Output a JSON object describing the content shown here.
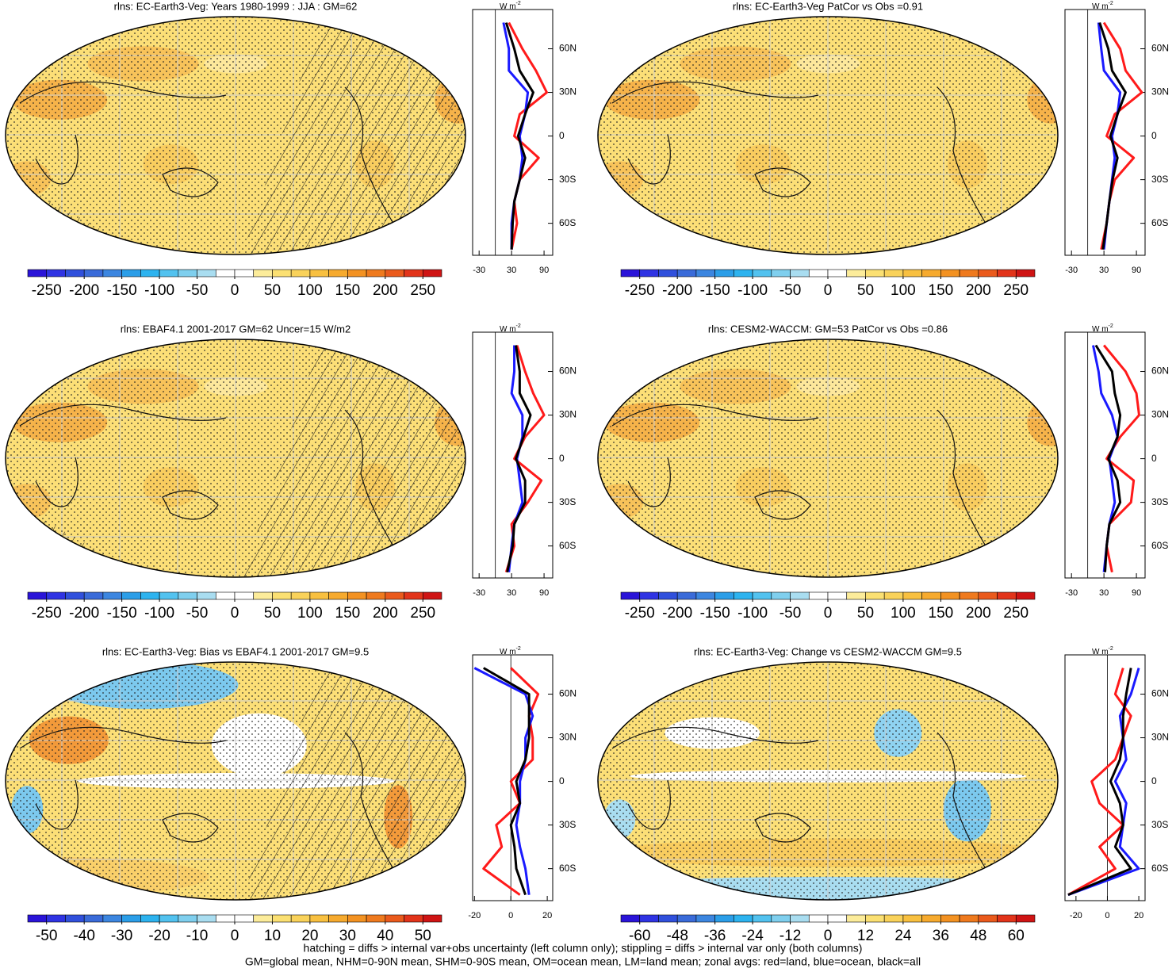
{
  "chart_data": [
    {
      "type": "map-zonal",
      "title": "rlns: EC-Earth3-Veg: Years 1980-1999 : JJA : GM=62",
      "unit": "W m",
      "unit_exp": "-2",
      "colorbar_lim": [
        -275,
        275
      ],
      "colorbar_ticks": [
        -250,
        -200,
        -150,
        -100,
        -50,
        0,
        50,
        100,
        150,
        200,
        250
      ],
      "lat": [
        -78,
        -60,
        -45,
        -30,
        -15,
        0,
        15,
        30,
        45,
        60,
        78
      ],
      "ylim": [
        -82,
        87
      ],
      "yticks": [
        {
          "value": 60,
          "label": "60N"
        },
        {
          "value": 30,
          "label": "30N"
        },
        0,
        {
          "value": -30,
          "label": "30S"
        },
        {
          "value": -60,
          "label": "60S"
        }
      ],
      "xlim": [
        -42,
        106
      ],
      "xticks": [
        -30,
        30,
        90
      ],
      "series": [
        {
          "color": "#ff1a1a",
          "values": [
            30,
            40,
            35,
            45,
            80,
            35,
            45,
            95,
            75,
            50,
            25
          ]
        },
        {
          "color": "#1a1aff",
          "values": [
            30,
            30,
            35,
            45,
            50,
            45,
            55,
            60,
            25,
            25,
            15
          ]
        },
        {
          "color": "#000000",
          "values": [
            30,
            32,
            35,
            45,
            55,
            42,
            55,
            70,
            45,
            35,
            20
          ]
        }
      ]
    },
    {
      "type": "map-zonal",
      "title": "rlns: EC-Earth3-Veg PatCor vs Obs =0.91",
      "unit": "W m",
      "unit_exp": "-2",
      "colorbar_lim": [
        -275,
        275
      ],
      "colorbar_ticks": [
        -250,
        -200,
        -150,
        -100,
        -50,
        0,
        50,
        100,
        150,
        200,
        250
      ],
      "lat": [
        -78,
        -60,
        -45,
        -30,
        -15,
        0,
        15,
        30,
        45,
        60,
        78
      ],
      "ylim": [
        -82,
        87
      ],
      "yticks": [
        {
          "value": 60,
          "label": "60N"
        },
        {
          "value": 30,
          "label": "30N"
        },
        0,
        {
          "value": -30,
          "label": "30S"
        },
        {
          "value": -60,
          "label": "60S"
        }
      ],
      "xlim": [
        -42,
        106
      ],
      "xticks": [
        -30,
        30,
        90
      ],
      "series": [
        {
          "color": "#ff1a1a",
          "values": [
            25,
            35,
            40,
            50,
            85,
            35,
            50,
            100,
            70,
            60,
            30
          ]
        },
        {
          "color": "#1a1aff",
          "values": [
            30,
            35,
            40,
            45,
            50,
            45,
            55,
            60,
            30,
            25,
            20
          ]
        },
        {
          "color": "#000000",
          "values": [
            28,
            35,
            40,
            46,
            55,
            42,
            55,
            70,
            45,
            38,
            22
          ]
        }
      ]
    },
    {
      "type": "map-zonal",
      "title": "rlns: EBAF4.1 2001-2017 GM=62 Uncer=15 W/m2",
      "unit": "W m",
      "unit_exp": "-2",
      "colorbar_lim": [
        -275,
        275
      ],
      "colorbar_ticks": [
        -250,
        -200,
        -150,
        -100,
        -50,
        0,
        50,
        100,
        150,
        200,
        250
      ],
      "lat": [
        -78,
        -60,
        -45,
        -30,
        -15,
        0,
        15,
        30,
        45,
        60,
        78
      ],
      "ylim": [
        -82,
        87
      ],
      "yticks": [
        {
          "value": 60,
          "label": "60N"
        },
        {
          "value": 30,
          "label": "30N"
        },
        0,
        {
          "value": -30,
          "label": "30S"
        },
        {
          "value": -60,
          "label": "60S"
        }
      ],
      "xlim": [
        -42,
        106
      ],
      "xticks": [
        -30,
        30,
        90
      ],
      "series": [
        {
          "color": "#ff1a1a",
          "values": [
            20,
            35,
            30,
            60,
            85,
            35,
            55,
            90,
            70,
            55,
            40
          ]
        },
        {
          "color": "#1a1aff",
          "values": [
            25,
            30,
            35,
            50,
            45,
            40,
            50,
            50,
            30,
            35,
            35
          ]
        },
        {
          "color": "#000000",
          "values": [
            22,
            32,
            35,
            55,
            55,
            38,
            52,
            65,
            45,
            45,
            38
          ]
        }
      ]
    },
    {
      "type": "map-zonal",
      "title": "rlns: CESM2-WACCM: GM=53 PatCor vs Obs =0.86",
      "unit": "W m",
      "unit_exp": "-2",
      "colorbar_lim": [
        -275,
        275
      ],
      "colorbar_ticks": [
        -250,
        -200,
        -150,
        -100,
        -50,
        0,
        50,
        100,
        150,
        200,
        250
      ],
      "lat": [
        -78,
        -60,
        -45,
        -30,
        -15,
        0,
        15,
        30,
        45,
        60,
        78
      ],
      "ylim": [
        -82,
        87
      ],
      "yticks": [
        {
          "value": 60,
          "label": "60N"
        },
        {
          "value": 30,
          "label": "30N"
        },
        0,
        {
          "value": -30,
          "label": "30S"
        },
        {
          "value": -60,
          "label": "60S"
        }
      ],
      "xlim": [
        -42,
        106
      ],
      "xticks": [
        -30,
        30,
        90
      ],
      "series": [
        {
          "color": "#ff1a1a",
          "values": [
            45,
            35,
            40,
            80,
            85,
            35,
            60,
            95,
            90,
            70,
            30
          ]
        },
        {
          "color": "#1a1aff",
          "values": [
            30,
            35,
            40,
            50,
            45,
            40,
            55,
            45,
            25,
            20,
            10
          ]
        },
        {
          "color": "#000000",
          "values": [
            32,
            35,
            40,
            60,
            55,
            38,
            55,
            60,
            50,
            45,
            15
          ]
        }
      ]
    },
    {
      "type": "map-zonal",
      "title": "rlns: EC-Earth3-Veg: Bias vs EBAF4.1 2001-2017 GM=9.5",
      "unit": "W m",
      "unit_exp": "-2",
      "colorbar_lim": [
        -55,
        55
      ],
      "colorbar_ticks": [
        -50,
        -40,
        -30,
        -20,
        -10,
        0,
        10,
        20,
        30,
        40,
        50
      ],
      "lat": [
        -78,
        -60,
        -45,
        -30,
        -15,
        0,
        15,
        30,
        45,
        60,
        78
      ],
      "ylim": [
        -82,
        87
      ],
      "yticks": [
        {
          "value": 60,
          "label": "60N"
        },
        {
          "value": 30,
          "label": "30N"
        },
        0,
        {
          "value": -30,
          "label": "30S"
        },
        {
          "value": -60,
          "label": "60S"
        }
      ],
      "xlim": [
        -21,
        23
      ],
      "xticks": [
        -20,
        0,
        20
      ],
      "series": [
        {
          "color": "#ff1a1a",
          "values": [
            5,
            -15,
            -5,
            -8,
            5,
            0,
            12,
            12,
            10,
            15,
            0
          ]
        },
        {
          "color": "#1a1aff",
          "values": [
            10,
            8,
            5,
            3,
            5,
            5,
            8,
            8,
            12,
            8,
            -20
          ]
        },
        {
          "color": "#000000",
          "values": [
            8,
            3,
            2,
            0,
            5,
            3,
            8,
            10,
            10,
            10,
            -15
          ]
        }
      ]
    },
    {
      "type": "map-zonal",
      "title": "rlns: EC-Earth3-Veg: Change vs CESM2-WACCM GM=9.5",
      "unit": "W m",
      "unit_exp": "-2",
      "colorbar_lim": [
        -66,
        66
      ],
      "colorbar_ticks": [
        -60,
        -48,
        -36,
        -24,
        -12,
        0,
        12,
        24,
        36,
        48,
        60
      ],
      "lat": [
        -78,
        -60,
        -45,
        -30,
        -15,
        0,
        15,
        30,
        45,
        60,
        78
      ],
      "ylim": [
        -82,
        87
      ],
      "yticks": [
        {
          "value": 60,
          "label": "60N"
        },
        {
          "value": 30,
          "label": "30N"
        },
        0,
        {
          "value": -30,
          "label": "30S"
        },
        {
          "value": -60,
          "label": "60S"
        }
      ],
      "xlim": [
        -27,
        24
      ],
      "xticks": [
        -20,
        0,
        20
      ],
      "series": [
        {
          "color": "#ff1a1a",
          "values": [
            -25,
            5,
            -5,
            10,
            -5,
            -10,
            5,
            10,
            15,
            5,
            10
          ]
        },
        {
          "color": "#1a1aff",
          "values": [
            -25,
            20,
            8,
            10,
            12,
            5,
            12,
            10,
            8,
            15,
            20
          ]
        },
        {
          "color": "#000000",
          "values": [
            -25,
            15,
            5,
            10,
            8,
            2,
            8,
            10,
            10,
            12,
            15
          ]
        }
      ]
    }
  ],
  "colorbar_colors": [
    "#2a14d8",
    "#2f33e3",
    "#3050dc",
    "#3a6bd9",
    "#3c86e0",
    "#2b9ee8",
    "#2db3ef",
    "#52c2ef",
    "#7fcfee",
    "#a9ddf0",
    "#ffffff",
    "#ffffff",
    "#fcec9a",
    "#fbe072",
    "#f9d25a",
    "#f8c040",
    "#f6aa2e",
    "#f39222",
    "#ef7a1e",
    "#ea5a1c",
    "#e2341a",
    "#cf1414"
  ],
  "notes": [
    "hatching = diffs > internal var+obs uncertainty (left column only); stippling = diffs > internal var only (both columns)",
    "GM=global mean, NHM=0-90N mean, SHM=0-90S mean, OM=ocean mean, LM=land mean; zonal avgs: red=land, blue=ocean, black=all"
  ]
}
